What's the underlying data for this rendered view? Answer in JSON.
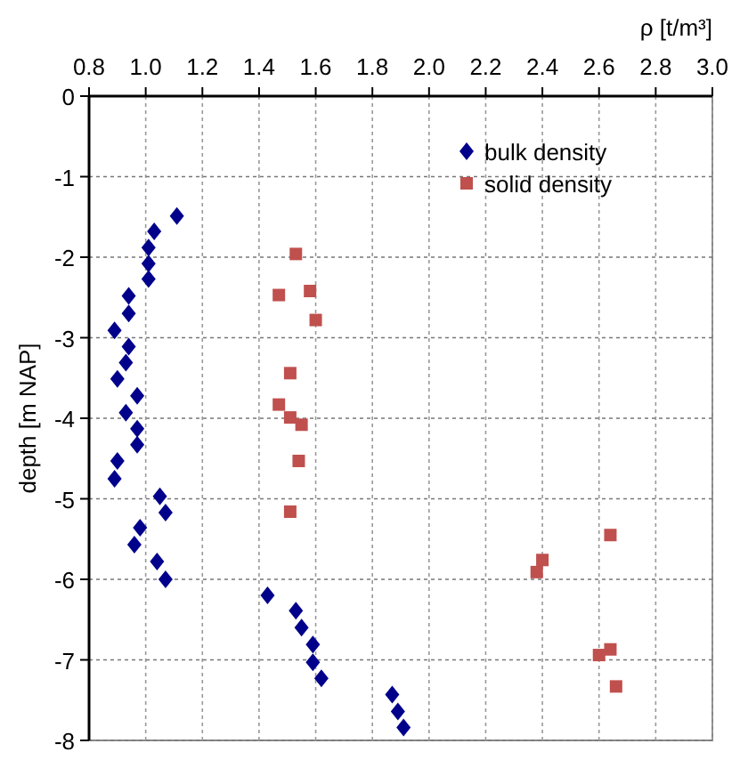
{
  "chart_data": {
    "type": "scatter",
    "xlabel": "ρ [t/m³]",
    "ylabel": "depth [m NAP]",
    "xlim": [
      0.8,
      3.0
    ],
    "xticks": [
      {
        "value": 0.8,
        "label": "0.8"
      },
      {
        "value": 1.0,
        "label": "1.0"
      },
      {
        "value": 1.2,
        "label": "1.2"
      },
      {
        "value": 1.4,
        "label": "1.4"
      },
      {
        "value": 1.6,
        "label": "1.6"
      },
      {
        "value": 1.8,
        "label": "1.8"
      },
      {
        "value": 2.0,
        "label": "2.0"
      },
      {
        "value": 2.2,
        "label": "2.2"
      },
      {
        "value": 2.4,
        "label": "2.4"
      },
      {
        "value": 2.6,
        "label": "2.6"
      },
      {
        "value": 2.8,
        "label": "2.8"
      },
      {
        "value": 3.0,
        "label": "3.0"
      }
    ],
    "ylim": [
      -8,
      0
    ],
    "yticks": [
      0,
      -1,
      -2,
      -3,
      -4,
      -5,
      -6,
      -7,
      -8
    ],
    "grid": true,
    "legend": "top right",
    "series": [
      {
        "name": "bulk density",
        "color": "#00008b",
        "marker": "diamond",
        "x": [
          1.11,
          1.03,
          1.01,
          1.01,
          1.01,
          0.94,
          0.94,
          0.89,
          0.94,
          0.93,
          0.9,
          0.97,
          0.93,
          0.97,
          0.97,
          0.9,
          0.89,
          1.05,
          1.07,
          0.98,
          0.96,
          1.04,
          1.07,
          1.43,
          1.53,
          1.55,
          1.59,
          1.59,
          1.62,
          1.87,
          1.89,
          1.91
        ],
        "values": [
          -1.49,
          -1.68,
          -1.88,
          -2.08,
          -2.27,
          -2.48,
          -2.7,
          -2.91,
          -3.11,
          -3.31,
          -3.51,
          -3.72,
          -3.93,
          -4.13,
          -4.33,
          -4.53,
          -4.75,
          -4.97,
          -5.17,
          -5.36,
          -5.57,
          -5.78,
          -6.0,
          -6.2,
          -6.39,
          -6.6,
          -6.81,
          -7.03,
          -7.23,
          -7.43,
          -7.64,
          -7.84
        ]
      },
      {
        "name": "solid density",
        "color": "#c0504d",
        "marker": "square",
        "x": [
          1.53,
          1.47,
          1.58,
          1.6,
          1.51,
          1.47,
          1.51,
          1.55,
          1.54,
          1.51,
          2.64,
          2.4,
          2.38,
          2.64,
          2.6,
          2.66
        ],
        "values": [
          -1.96,
          -2.47,
          -2.42,
          -2.78,
          -3.44,
          -3.83,
          -3.99,
          -4.08,
          -4.53,
          -5.16,
          -5.45,
          -5.76,
          -5.91,
          -6.87,
          -6.94,
          -7.33
        ]
      }
    ]
  }
}
